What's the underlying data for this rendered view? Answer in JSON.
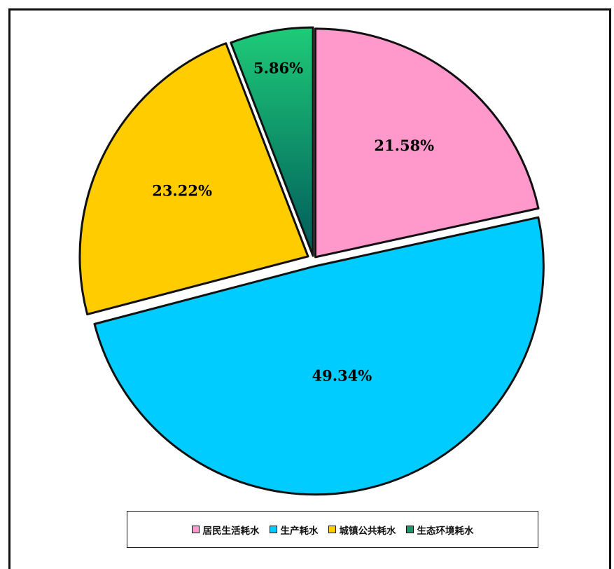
{
  "chart_data": {
    "type": "pie",
    "categories": [
      "居民生活耗水",
      "生产耗水",
      "城镇公共耗水",
      "生态环境耗水"
    ],
    "values": [
      21.58,
      49.34,
      23.22,
      5.86
    ],
    "labels": [
      "21.58%",
      "49.34%",
      "23.22%",
      "5.86%"
    ],
    "colors": [
      "#ff99cc",
      "#00ccff",
      "#ffcc00",
      "#1a9a6a"
    ],
    "exploded": true,
    "start_angle": "12 o'clock, clockwise",
    "legend_position": "bottom"
  }
}
